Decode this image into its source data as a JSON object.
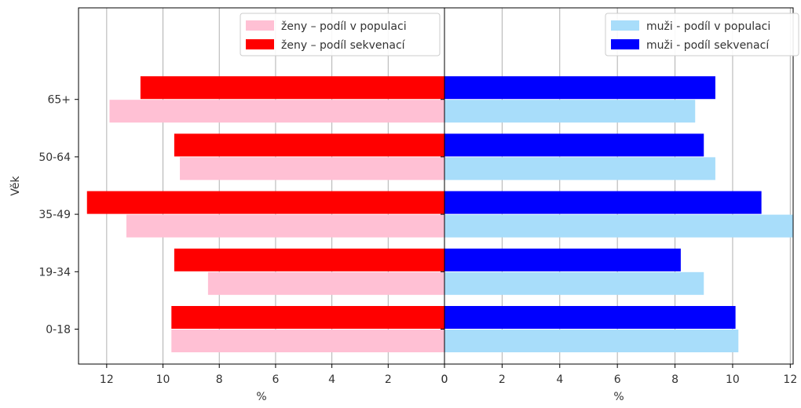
{
  "chart_data": {
    "type": "bar",
    "orientation": "horizontal",
    "layout": "population-pyramid",
    "ylabel": "Věk",
    "categories": [
      "0-18",
      "19-34",
      "35-49",
      "50-64",
      "65+"
    ],
    "left_panel": {
      "xlabel": "%",
      "xlim": [
        13.0,
        0
      ],
      "ticks": [
        "12",
        "10",
        "8",
        "6",
        "4",
        "2",
        "0"
      ],
      "grid": true,
      "legend_position": "top-right",
      "series": [
        {
          "name": "ženy – podíl v populaci",
          "color": "#ffc0d4",
          "values": [
            9.7,
            8.4,
            11.3,
            9.4,
            11.9
          ]
        },
        {
          "name": "ženy – podíl sekvenací",
          "color": "#ff0000",
          "values": [
            9.7,
            9.6,
            12.7,
            9.6,
            10.8
          ]
        }
      ]
    },
    "right_panel": {
      "xlabel": "%",
      "xlim": [
        0,
        12.1
      ],
      "ticks": [
        "0",
        "2",
        "4",
        "6",
        "8",
        "10",
        "12"
      ],
      "grid": true,
      "legend_position": "top-right",
      "series": [
        {
          "name": "muži - podíl v populaci",
          "color": "#a8ddfa",
          "values": [
            10.2,
            9.0,
            12.1,
            9.4,
            8.7
          ]
        },
        {
          "name": "muži - podíl sekvenací",
          "color": "#0000ff",
          "values": [
            10.1,
            8.2,
            11.0,
            9.0,
            9.4
          ]
        }
      ]
    }
  }
}
